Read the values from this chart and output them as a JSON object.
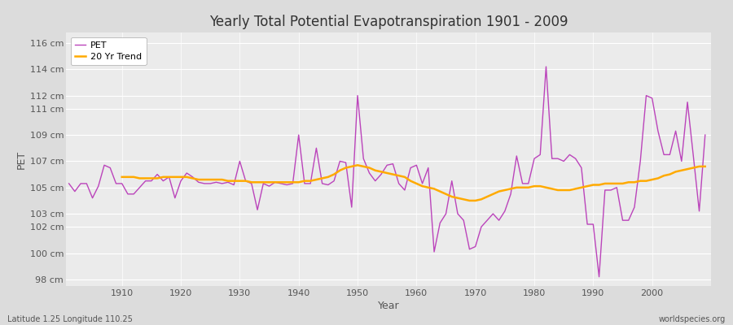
{
  "title": "Yearly Total Potential Evapotranspiration 1901 - 2009",
  "xlabel": "Year",
  "ylabel": "PET",
  "bottom_left_label": "Latitude 1.25 Longitude 110.25",
  "bottom_right_label": "worldspecies.org",
  "pet_color": "#bb44bb",
  "trend_color": "#ffaa00",
  "background_color": "#dcdcdc",
  "plot_bg_color": "#ebebeb",
  "grid_color": "#ffffff",
  "ylim": [
    97.5,
    116.8
  ],
  "yticks": [
    98,
    100,
    102,
    103,
    105,
    107,
    109,
    111,
    112,
    114,
    116
  ],
  "xlim": [
    1900.5,
    2010
  ],
  "xticks": [
    1910,
    1920,
    1930,
    1940,
    1950,
    1960,
    1970,
    1980,
    1990,
    2000
  ],
  "years": [
    1901,
    1902,
    1903,
    1904,
    1905,
    1906,
    1907,
    1908,
    1909,
    1910,
    1911,
    1912,
    1913,
    1914,
    1915,
    1916,
    1917,
    1918,
    1919,
    1920,
    1921,
    1922,
    1923,
    1924,
    1925,
    1926,
    1927,
    1928,
    1929,
    1930,
    1931,
    1932,
    1933,
    1934,
    1935,
    1936,
    1937,
    1938,
    1939,
    1940,
    1941,
    1942,
    1943,
    1944,
    1945,
    1946,
    1947,
    1948,
    1949,
    1950,
    1951,
    1952,
    1953,
    1954,
    1955,
    1956,
    1957,
    1958,
    1959,
    1960,
    1961,
    1962,
    1963,
    1964,
    1965,
    1966,
    1967,
    1968,
    1969,
    1970,
    1971,
    1972,
    1973,
    1974,
    1975,
    1976,
    1977,
    1978,
    1979,
    1980,
    1981,
    1982,
    1983,
    1984,
    1985,
    1986,
    1987,
    1988,
    1989,
    1990,
    1991,
    1992,
    1993,
    1994,
    1995,
    1996,
    1997,
    1998,
    1999,
    2000,
    2001,
    2002,
    2003,
    2004,
    2005,
    2006,
    2007,
    2008,
    2009
  ],
  "pet_values": [
    105.3,
    104.7,
    105.3,
    105.3,
    104.2,
    105.1,
    106.7,
    106.5,
    105.3,
    105.3,
    104.5,
    104.5,
    105.0,
    105.5,
    105.5,
    106.0,
    105.5,
    105.8,
    104.2,
    105.5,
    106.1,
    105.8,
    105.4,
    105.3,
    105.3,
    105.4,
    105.3,
    105.4,
    105.2,
    107.0,
    105.5,
    105.3,
    103.3,
    105.3,
    105.1,
    105.4,
    105.3,
    105.2,
    105.3,
    109.0,
    105.3,
    105.3,
    108.0,
    105.3,
    105.2,
    105.5,
    107.0,
    106.9,
    103.5,
    112.0,
    107.2,
    106.1,
    105.5,
    106.0,
    106.7,
    106.8,
    105.3,
    104.8,
    106.5,
    106.7,
    105.3,
    106.5,
    100.1,
    102.3,
    103.0,
    105.5,
    103.0,
    102.5,
    100.3,
    100.5,
    102.0,
    102.5,
    103.0,
    102.5,
    103.2,
    104.5,
    107.4,
    105.3,
    105.3,
    107.2,
    107.5,
    114.2,
    107.2,
    107.2,
    107.0,
    107.5,
    107.2,
    106.5,
    102.2,
    102.2,
    98.2,
    104.8,
    104.8,
    105.0,
    102.5,
    102.5,
    103.5,
    107.0,
    112.0,
    111.8,
    109.3,
    107.5,
    107.5,
    109.3,
    107.0,
    111.5,
    107.4,
    103.2,
    109.0
  ],
  "trend_years": [
    1910,
    1911,
    1912,
    1913,
    1914,
    1915,
    1916,
    1917,
    1918,
    1919,
    1920,
    1921,
    1922,
    1923,
    1924,
    1925,
    1926,
    1927,
    1928,
    1929,
    1930,
    1931,
    1932,
    1933,
    1934,
    1935,
    1936,
    1937,
    1938,
    1939,
    1940,
    1941,
    1942,
    1943,
    1944,
    1945,
    1946,
    1947,
    1948,
    1949,
    1950,
    1951,
    1952,
    1953,
    1954,
    1955,
    1956,
    1957,
    1958,
    1959,
    1960,
    1961,
    1962,
    1963,
    1964,
    1965,
    1966,
    1967,
    1968,
    1969,
    1970,
    1971,
    1972,
    1973,
    1974,
    1975,
    1976,
    1977,
    1978,
    1979,
    1980,
    1981,
    1982,
    1983,
    1984,
    1985,
    1986,
    1987,
    1988,
    1989,
    1990,
    1991,
    1992,
    1993,
    1994,
    1995,
    1996,
    1997,
    1998,
    1999,
    2000,
    2001,
    2002,
    2003,
    2004,
    2005,
    2006,
    2007,
    2008,
    2009
  ],
  "trend_values": [
    105.8,
    105.8,
    105.8,
    105.7,
    105.7,
    105.7,
    105.7,
    105.8,
    105.8,
    105.8,
    105.8,
    105.8,
    105.7,
    105.6,
    105.6,
    105.6,
    105.6,
    105.6,
    105.5,
    105.5,
    105.5,
    105.5,
    105.4,
    105.4,
    105.4,
    105.4,
    105.4,
    105.4,
    105.4,
    105.4,
    105.4,
    105.5,
    105.5,
    105.6,
    105.7,
    105.8,
    106.0,
    106.3,
    106.5,
    106.6,
    106.7,
    106.6,
    106.5,
    106.3,
    106.2,
    106.1,
    106.0,
    105.9,
    105.8,
    105.5,
    105.3,
    105.1,
    105.0,
    104.9,
    104.7,
    104.5,
    104.3,
    104.2,
    104.1,
    104.0,
    104.0,
    104.1,
    104.3,
    104.5,
    104.7,
    104.8,
    104.9,
    105.0,
    105.0,
    105.0,
    105.1,
    105.1,
    105.0,
    104.9,
    104.8,
    104.8,
    104.8,
    104.9,
    105.0,
    105.1,
    105.2,
    105.2,
    105.3,
    105.3,
    105.3,
    105.3,
    105.4,
    105.4,
    105.5,
    105.5,
    105.6,
    105.7,
    105.9,
    106.0,
    106.2,
    106.3,
    106.4,
    106.5,
    106.6,
    106.6
  ]
}
